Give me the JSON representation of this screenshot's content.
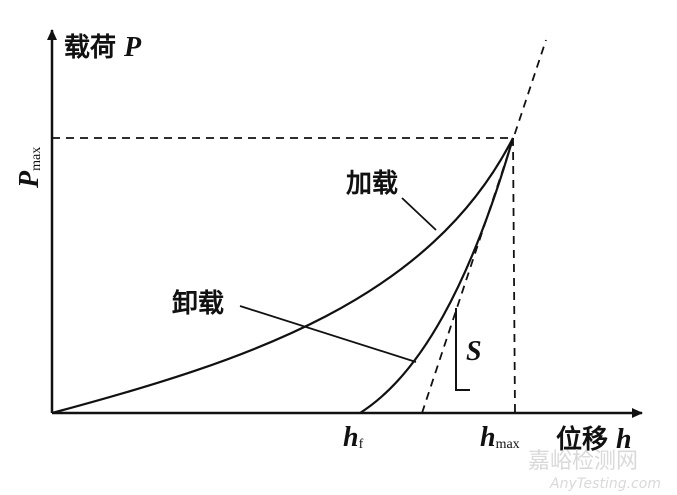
{
  "axes": {
    "y_label": "载荷",
    "y_symbol": "P",
    "x_label": "位移",
    "x_symbol": "h"
  },
  "markers": {
    "p_max": {
      "symbol": "P",
      "subscript": "max"
    },
    "h_f": {
      "symbol": "h",
      "subscript": "f"
    },
    "h_max": {
      "symbol": "h",
      "subscript": "max"
    }
  },
  "annotations": {
    "loading": "加载",
    "unloading": "卸载",
    "stiffness": "S"
  },
  "watermark": {
    "cn": "嘉峪检测网",
    "en": "AnyTesting.com"
  }
}
